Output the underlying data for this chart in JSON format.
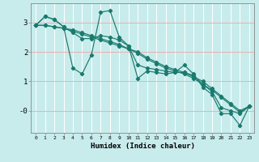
{
  "xlabel": "Humidex (Indice chaleur)",
  "line_color": "#1a7a6e",
  "grid_color": "#ffffff",
  "facecolor": "#c8ecec",
  "xlim": [
    -0.5,
    23.5
  ],
  "ylim": [
    -0.75,
    3.65
  ],
  "yticks": [
    0,
    1,
    2,
    3
  ],
  "ytick_labels": [
    "-0",
    "1",
    "2",
    "3"
  ],
  "xticks": [
    0,
    1,
    2,
    3,
    4,
    5,
    6,
    7,
    8,
    9,
    10,
    11,
    12,
    13,
    14,
    15,
    16,
    17,
    18,
    19,
    20,
    21,
    22,
    23
  ],
  "series": [
    [
      2.9,
      3.2,
      3.1,
      2.85,
      1.45,
      1.25,
      1.9,
      3.35,
      3.4,
      2.5,
      2.2,
      1.1,
      1.35,
      1.3,
      1.25,
      1.3,
      1.55,
      1.25,
      0.8,
      0.55,
      -0.1,
      -0.1,
      -0.5,
      0.15
    ],
    [
      2.9,
      3.2,
      3.1,
      2.85,
      2.65,
      2.45,
      2.45,
      2.55,
      2.5,
      2.4,
      2.2,
      1.55,
      1.45,
      1.4,
      1.35,
      1.3,
      1.3,
      1.2,
      0.9,
      0.65,
      0.1,
      0.0,
      -0.1,
      0.15
    ],
    [
      2.9,
      2.9,
      2.85,
      2.8,
      2.7,
      2.6,
      2.5,
      2.4,
      2.3,
      2.2,
      2.1,
      2.0,
      1.8,
      1.65,
      1.5,
      1.4,
      1.3,
      1.15,
      1.0,
      0.75,
      0.5,
      0.25,
      0.0,
      0.15
    ],
    [
      2.9,
      2.9,
      2.85,
      2.8,
      2.75,
      2.65,
      2.55,
      2.45,
      2.35,
      2.25,
      2.1,
      1.95,
      1.75,
      1.6,
      1.45,
      1.35,
      1.25,
      1.1,
      0.9,
      0.7,
      0.45,
      0.2,
      -0.05,
      0.15
    ]
  ]
}
